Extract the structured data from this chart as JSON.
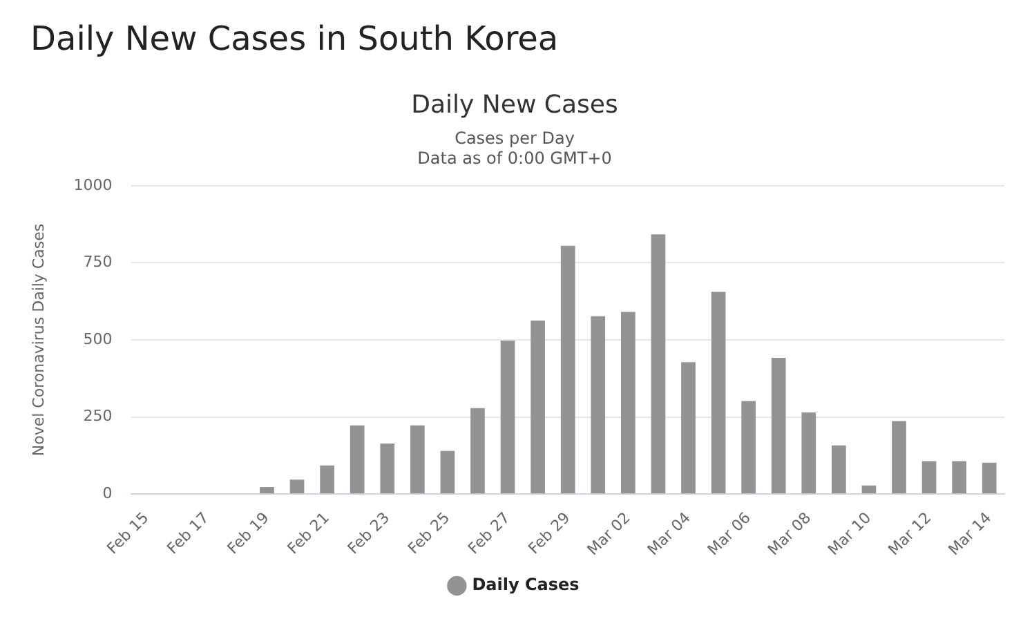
{
  "chart_data": {
    "type": "bar",
    "title": "Daily New Cases in South Korea",
    "subtitle": "Daily New Cases",
    "annotations": [
      "Cases per Day",
      "Data as of 0:00 GMT+0"
    ],
    "ylabel": "Novel Coronavirus Daily Cases",
    "categories": [
      "Feb 15",
      null,
      "Feb 17",
      null,
      "Feb 19",
      null,
      "Feb 21",
      null,
      "Feb 23",
      null,
      "Feb 25",
      null,
      "Feb 27",
      null,
      "Feb 29",
      null,
      "Mar 02",
      null,
      "Mar 04",
      null,
      "Mar 06",
      null,
      "Mar 08",
      null,
      "Mar 10",
      null,
      "Mar 12",
      null,
      "Mar 14"
    ],
    "series": [
      {
        "name": "Daily Cases",
        "color": "#939393",
        "values": [
          0,
          0,
          0,
          0,
          23,
          47,
          93,
          223,
          164,
          223,
          140,
          279,
          498,
          563,
          805,
          577,
          591,
          842,
          428,
          656,
          302,
          442,
          265,
          158,
          28,
          237,
          107,
          107,
          102
        ]
      }
    ],
    "ylim": [
      0,
      1000
    ],
    "yticks": [
      0,
      250,
      500,
      750,
      1000
    ],
    "grid": "y",
    "legend": "bottom"
  }
}
